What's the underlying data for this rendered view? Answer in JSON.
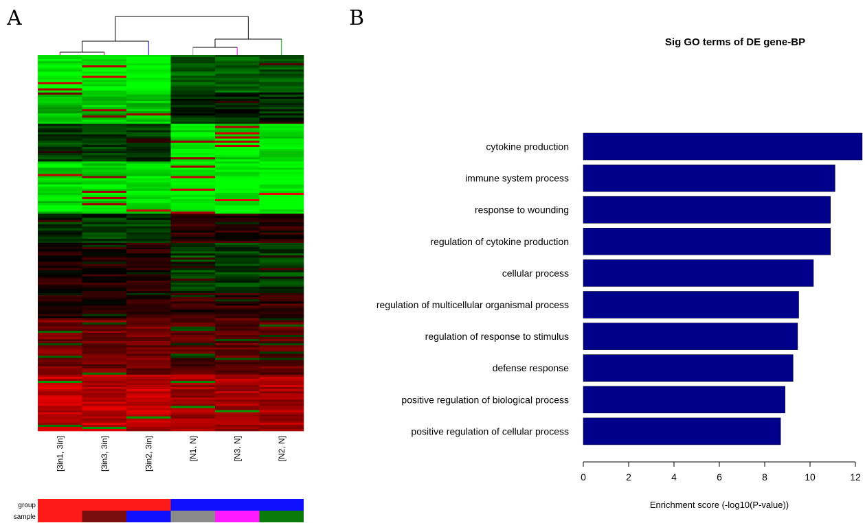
{
  "panels": {
    "a_label": "A",
    "b_label": "B"
  },
  "chart_data": [
    {
      "type": "heatmap",
      "title": "",
      "columns": [
        "[3in1, 3in]",
        "[3in3, 3in]",
        "[3in2, 3in]",
        "[N1, N]",
        "[N3, N]",
        "[N2, N]"
      ],
      "annotation_rows": [
        "group",
        "sample"
      ],
      "group_colors": [
        "#ff1a1a",
        "#ff1a1a",
        "#ff1a1a",
        "#1010ff",
        "#1010ff",
        "#1010ff"
      ],
      "sample_colors": [
        "#ff1a1a",
        "#7a0d0d",
        "#1010ff",
        "#8a8a8a",
        "#ff1aff",
        "#0a7a0a"
      ],
      "color_scale": {
        "low": "#00ff00",
        "mid": "#000000",
        "high": "#ff0000"
      },
      "dendrogram": "two clusters: 3in samples and N samples"
    },
    {
      "type": "bar",
      "orientation": "horizontal",
      "title": "Sig GO terms of DE gene-BP",
      "xlabel": "Enrichment score (-log10(P-value))",
      "ylabel": "",
      "xlim": [
        0,
        12
      ],
      "xticks": [
        0,
        2,
        4,
        6,
        8,
        10,
        12
      ],
      "bar_color": "#00008b",
      "categories": [
        "cytokine production",
        "immune system process",
        "response to wounding",
        "regulation of cytokine production",
        "cellular process",
        "regulation of multicellular organismal process",
        "regulation of response to stimulus",
        "defense response",
        "positive regulation of biological process",
        "positive regulation of cellular process"
      ],
      "values": [
        12.3,
        11.1,
        10.9,
        10.9,
        10.15,
        9.5,
        9.45,
        9.25,
        8.9,
        8.7
      ]
    }
  ]
}
